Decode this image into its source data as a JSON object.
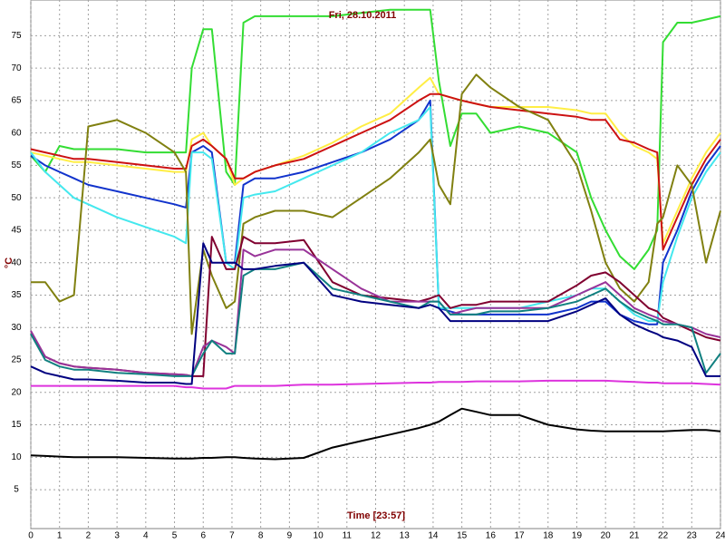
{
  "chart_data": {
    "type": "line",
    "title": "Fri, 28.10.2011",
    "x_label": "Time [23:57]",
    "y_label": "°C",
    "x": [
      0,
      0.5,
      1,
      1.5,
      2,
      3,
      4,
      5,
      5.4,
      5.6,
      6,
      6.3,
      6.8,
      7.1,
      7.4,
      7.8,
      8.5,
      9.5,
      10.5,
      11.5,
      12.5,
      13.5,
      13.9,
      14.2,
      14.6,
      15,
      15.5,
      16,
      17,
      18,
      19,
      19.5,
      20,
      20.5,
      21,
      21.5,
      21.8,
      22,
      22.5,
      23,
      23.5,
      24
    ],
    "xlim": [
      0,
      24
    ],
    "xticks": [
      0,
      1,
      2,
      3,
      4,
      5,
      6,
      7,
      8,
      9,
      10,
      11,
      12,
      13,
      14,
      15,
      16,
      17,
      18,
      19,
      20,
      21,
      22,
      23,
      24
    ],
    "ylim": [
      -1,
      80.5
    ],
    "yticks": [
      5,
      10,
      15,
      20,
      25,
      30,
      35,
      40,
      45,
      50,
      55,
      60,
      65,
      70,
      75
    ],
    "grid": true,
    "series": [
      {
        "color": "#33dd33",
        "values": [
          56.5,
          54,
          58,
          57.5,
          57.5,
          57.5,
          57,
          57,
          57,
          70,
          76,
          76,
          54,
          52,
          77,
          78,
          78,
          78,
          78,
          78.5,
          79,
          79,
          79,
          68,
          58,
          63,
          63,
          60,
          61,
          60,
          57,
          50,
          45,
          41,
          39,
          42,
          45,
          74,
          77,
          77,
          77.5,
          78
        ]
      },
      {
        "color": "#ffee44",
        "values": [
          57,
          56.5,
          56,
          55.5,
          55.5,
          55,
          54.5,
          54,
          54,
          59,
          60,
          58,
          56,
          52,
          53,
          54,
          55,
          56.5,
          58.5,
          61,
          63,
          67,
          68.5,
          66,
          65.5,
          65,
          64.5,
          64,
          64,
          64,
          63.5,
          63,
          63,
          60,
          58,
          57,
          56,
          43,
          48,
          53,
          57,
          60
        ]
      },
      {
        "color": "#cc1111",
        "values": [
          57.5,
          57,
          56.5,
          56,
          56,
          55.5,
          55,
          54.5,
          54.5,
          58,
          59,
          58,
          56,
          53,
          53,
          54,
          55,
          56,
          58,
          60,
          62,
          65,
          66,
          66,
          65.5,
          65,
          64.5,
          64,
          63.5,
          63,
          62.5,
          62,
          62,
          59,
          58.5,
          57.5,
          57,
          42,
          47,
          52,
          56,
          59
        ]
      },
      {
        "color": "#1133cc",
        "values": [
          56.5,
          55,
          54,
          53,
          52,
          51,
          50,
          49,
          48.5,
          57,
          58,
          57,
          40,
          40,
          52,
          53,
          53,
          54,
          55.5,
          57,
          59,
          62,
          65,
          33,
          32.5,
          32,
          32,
          32,
          32,
          32,
          33,
          34,
          34,
          32,
          31,
          30.5,
          30.5,
          40,
          45,
          51,
          55,
          58
        ]
      },
      {
        "color": "#44e8ee",
        "values": [
          57,
          54,
          52,
          50,
          49,
          47,
          45.5,
          44,
          43,
          57,
          57,
          56,
          40,
          39,
          50,
          50.5,
          51,
          53,
          55,
          57,
          60,
          62,
          64,
          33,
          33,
          33,
          33,
          33,
          33,
          34,
          35,
          36,
          36,
          34,
          32,
          31,
          31,
          37,
          44,
          50,
          54,
          57
        ]
      },
      {
        "color": "#808010",
        "values": [
          37,
          37,
          34,
          35,
          61,
          62,
          60,
          57,
          54,
          29,
          42,
          38,
          33,
          34,
          46,
          47,
          48,
          48,
          47,
          50,
          53,
          57,
          59,
          52,
          49,
          66,
          69,
          67,
          64,
          62,
          55,
          48,
          40,
          36,
          34,
          37,
          46,
          47,
          55,
          52,
          40,
          48
        ]
      },
      {
        "color": "#800030",
        "values": [
          29,
          25.5,
          24.5,
          24,
          23.8,
          23.5,
          23,
          22.8,
          22.7,
          22.5,
          22.5,
          44,
          39,
          39,
          44,
          43,
          43,
          43.5,
          37,
          35,
          34.5,
          34,
          34.5,
          35,
          33,
          33.5,
          33.5,
          34,
          34,
          34,
          36.5,
          38,
          38.5,
          37,
          35,
          33,
          32.5,
          31.5,
          30.5,
          29.5,
          28.5,
          28
        ]
      },
      {
        "color": "#993399",
        "values": [
          29.5,
          25.5,
          24.5,
          24,
          23.8,
          23.5,
          23,
          22.8,
          22.7,
          22.5,
          27,
          28,
          27,
          26,
          42,
          41,
          42,
          42,
          39,
          36,
          34,
          34,
          34,
          34,
          32,
          32.5,
          33,
          33,
          33,
          33,
          35,
          36,
          37,
          35,
          33,
          32,
          31.5,
          31,
          30.5,
          30,
          29,
          28.5
        ]
      },
      {
        "color": "#118080",
        "values": [
          29,
          25,
          24,
          23.5,
          23.5,
          23,
          22.8,
          22.5,
          22.5,
          22.5,
          26,
          28,
          26,
          26,
          38,
          39,
          39,
          40,
          36,
          35,
          34,
          33,
          34,
          34,
          32,
          32,
          32,
          32.5,
          32.5,
          33,
          34,
          35,
          36,
          34,
          32.5,
          31.5,
          31,
          30.5,
          30.5,
          30,
          23,
          26
        ]
      },
      {
        "color": "#000080",
        "values": [
          24,
          23,
          22.5,
          22,
          22,
          21.8,
          21.5,
          21.5,
          21.3,
          21.3,
          43,
          40,
          40,
          40,
          39,
          39,
          39.5,
          40,
          35,
          34,
          33.5,
          33,
          33.5,
          33,
          31,
          31,
          31,
          31,
          31,
          31,
          32.5,
          33.5,
          34.5,
          32,
          30.5,
          29.5,
          29,
          28.5,
          28,
          27,
          22.5,
          22.5
        ]
      },
      {
        "color": "#dd33dd",
        "values": [
          21,
          21,
          21,
          21,
          21,
          21,
          21,
          21,
          20.8,
          20.8,
          20.6,
          20.6,
          20.6,
          21,
          21,
          21,
          21,
          21.2,
          21.2,
          21.3,
          21.4,
          21.5,
          21.5,
          21.6,
          21.6,
          21.6,
          21.7,
          21.7,
          21.7,
          21.8,
          21.8,
          21.8,
          21.8,
          21.7,
          21.6,
          21.5,
          21.5,
          21.4,
          21.4,
          21.4,
          21.3,
          21.2
        ]
      },
      {
        "color": "#000000",
        "values": [
          10.3,
          10.2,
          10.1,
          10,
          10,
          10,
          9.9,
          9.8,
          9.8,
          9.8,
          9.9,
          9.9,
          10,
          10,
          9.9,
          9.8,
          9.7,
          9.9,
          11.5,
          12.5,
          13.5,
          14.5,
          15,
          15.5,
          16.5,
          17.5,
          17,
          16.5,
          16.5,
          15,
          14.3,
          14.1,
          14,
          14,
          14,
          14,
          14,
          14,
          14.1,
          14.2,
          14.2,
          14
        ]
      }
    ]
  }
}
